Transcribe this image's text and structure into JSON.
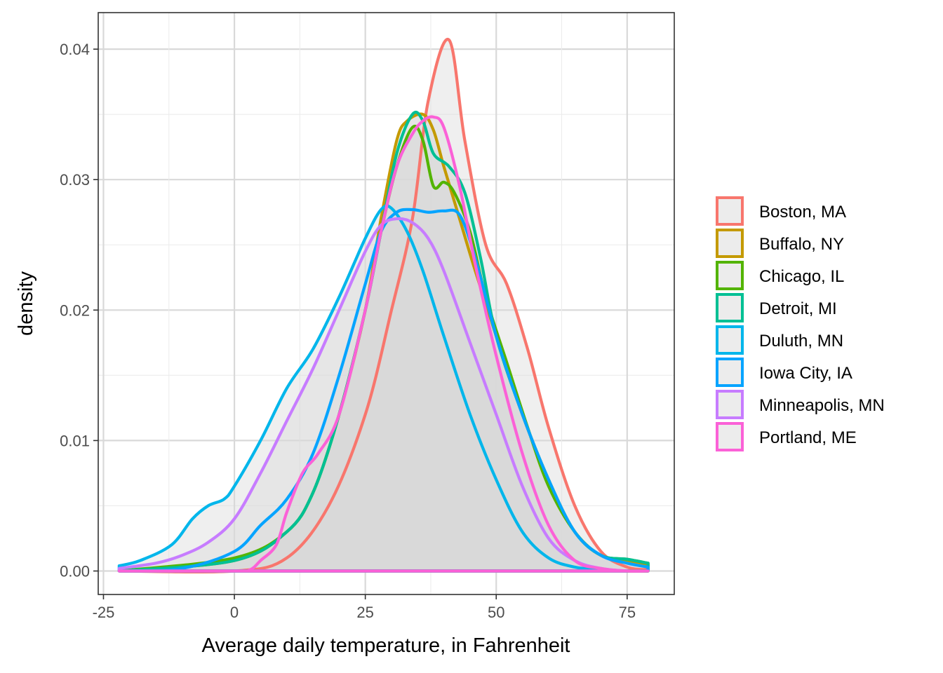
{
  "chart_data": {
    "type": "area",
    "title": "",
    "xlabel": "Average daily temperature, in Fahrenheit",
    "ylabel": "density",
    "xlim": [
      -26,
      84
    ],
    "ylim": [
      -0.0018,
      0.0428
    ],
    "xticks": [
      -25,
      0,
      25,
      50,
      75
    ],
    "xtick_labels": [
      "-25",
      "0",
      "25",
      "50",
      "75"
    ],
    "yticks": [
      0,
      0.01,
      0.02,
      0.03,
      0.04
    ],
    "ytick_labels": [
      "0.00",
      "0.01",
      "0.02",
      "0.03",
      "0.04"
    ],
    "grid": true,
    "legend_position": "right",
    "fill_color": "#d9d9d9",
    "series": [
      {
        "name": "Boston, MA",
        "color": "#F8766D",
        "x": [
          -22,
          0,
          10,
          18,
          25,
          30,
          34,
          37,
          41,
          44,
          48,
          52,
          56,
          60,
          65,
          70,
          75,
          79
        ],
        "y": [
          0,
          0,
          0.001,
          0.005,
          0.012,
          0.02,
          0.027,
          0.036,
          0.0407,
          0.033,
          0.025,
          0.022,
          0.017,
          0.011,
          0.005,
          0.0015,
          0.0003,
          0.0001
        ]
      },
      {
        "name": "Buffalo, NY",
        "color": "#C49A00",
        "x": [
          -22,
          0,
          10,
          15,
          20,
          25,
          28,
          31,
          33,
          36,
          38,
          40,
          43,
          46,
          50,
          55,
          60,
          65,
          70,
          75,
          79
        ],
        "y": [
          0,
          0.0008,
          0.003,
          0.006,
          0.012,
          0.02,
          0.027,
          0.033,
          0.0345,
          0.035,
          0.0338,
          0.031,
          0.027,
          0.023,
          0.018,
          0.012,
          0.007,
          0.003,
          0.0012,
          0.0007,
          0.0005
        ]
      },
      {
        "name": "Chicago, IL",
        "color": "#53B400",
        "x": [
          -22,
          0,
          10,
          15,
          20,
          25,
          28,
          31,
          34,
          36,
          38,
          40,
          42,
          45,
          48,
          52,
          56,
          60,
          65,
          70,
          75,
          79
        ],
        "y": [
          0,
          0.001,
          0.003,
          0.006,
          0.012,
          0.02,
          0.026,
          0.031,
          0.034,
          0.033,
          0.0295,
          0.0298,
          0.029,
          0.026,
          0.021,
          0.016,
          0.011,
          0.0065,
          0.003,
          0.0012,
          0.0009,
          0.0006
        ]
      },
      {
        "name": "Detroit, MI",
        "color": "#00C094",
        "x": [
          -22,
          0,
          10,
          15,
          20,
          25,
          28,
          31,
          34,
          36,
          38,
          41,
          44,
          47,
          50,
          55,
          60,
          65,
          70,
          75,
          79
        ],
        "y": [
          0,
          0.0008,
          0.003,
          0.006,
          0.012,
          0.02,
          0.026,
          0.032,
          0.035,
          0.0345,
          0.032,
          0.031,
          0.029,
          0.024,
          0.018,
          0.012,
          0.007,
          0.003,
          0.0012,
          0.0009,
          0.0006
        ]
      },
      {
        "name": "Duluth, MN",
        "color": "#00B6EB",
        "x": [
          -22,
          -18,
          -12,
          -8,
          -5,
          -2,
          0,
          5,
          10,
          15,
          20,
          25,
          28,
          30,
          33,
          36,
          40,
          45,
          50,
          55,
          60,
          65,
          70,
          75
        ],
        "y": [
          0.0004,
          0.0008,
          0.002,
          0.004,
          0.005,
          0.0055,
          0.0065,
          0.01,
          0.014,
          0.017,
          0.021,
          0.0255,
          0.0277,
          0.0278,
          0.026,
          0.023,
          0.018,
          0.012,
          0.007,
          0.003,
          0.001,
          0.0003,
          0.0001,
          0
        ]
      },
      {
        "name": "Iowa City, IA",
        "color": "#06A4FF",
        "x": [
          -22,
          -10,
          0,
          5,
          10,
          15,
          20,
          25,
          28,
          31,
          34,
          37,
          40,
          43,
          46,
          50,
          55,
          60,
          65,
          70,
          75,
          79
        ],
        "y": [
          0,
          0.0002,
          0.0015,
          0.0035,
          0.0055,
          0.009,
          0.015,
          0.022,
          0.026,
          0.0275,
          0.0277,
          0.0275,
          0.0276,
          0.0273,
          0.024,
          0.018,
          0.012,
          0.007,
          0.003,
          0.0012,
          0.0006,
          0.0003
        ]
      },
      {
        "name": "Minneapolis, MN",
        "color": "#C77CFF",
        "x": [
          -22,
          -15,
          -10,
          -5,
          0,
          5,
          10,
          15,
          20,
          25,
          28,
          31,
          34,
          37,
          40,
          45,
          50,
          55,
          60,
          65,
          70,
          75
        ],
        "y": [
          0.0002,
          0.0006,
          0.0012,
          0.0022,
          0.004,
          0.0075,
          0.0115,
          0.0155,
          0.02,
          0.0245,
          0.0265,
          0.027,
          0.0267,
          0.0255,
          0.023,
          0.0175,
          0.012,
          0.0065,
          0.0025,
          0.0008,
          0.0002,
          0
        ]
      },
      {
        "name": "Portland, ME",
        "color": "#FB61D7",
        "x": [
          -22,
          0,
          3,
          5,
          8,
          10,
          13,
          16,
          20,
          25,
          28,
          31,
          34,
          36,
          38,
          40,
          43,
          46,
          50,
          55,
          60,
          65,
          70,
          75,
          79
        ],
        "y": [
          0,
          0,
          0.0001,
          0.0008,
          0.002,
          0.0045,
          0.0075,
          0.009,
          0.012,
          0.02,
          0.026,
          0.031,
          0.0335,
          0.0345,
          0.0348,
          0.034,
          0.0295,
          0.0235,
          0.0165,
          0.009,
          0.0035,
          0.0008,
          0.0002,
          0,
          0
        ]
      }
    ]
  }
}
